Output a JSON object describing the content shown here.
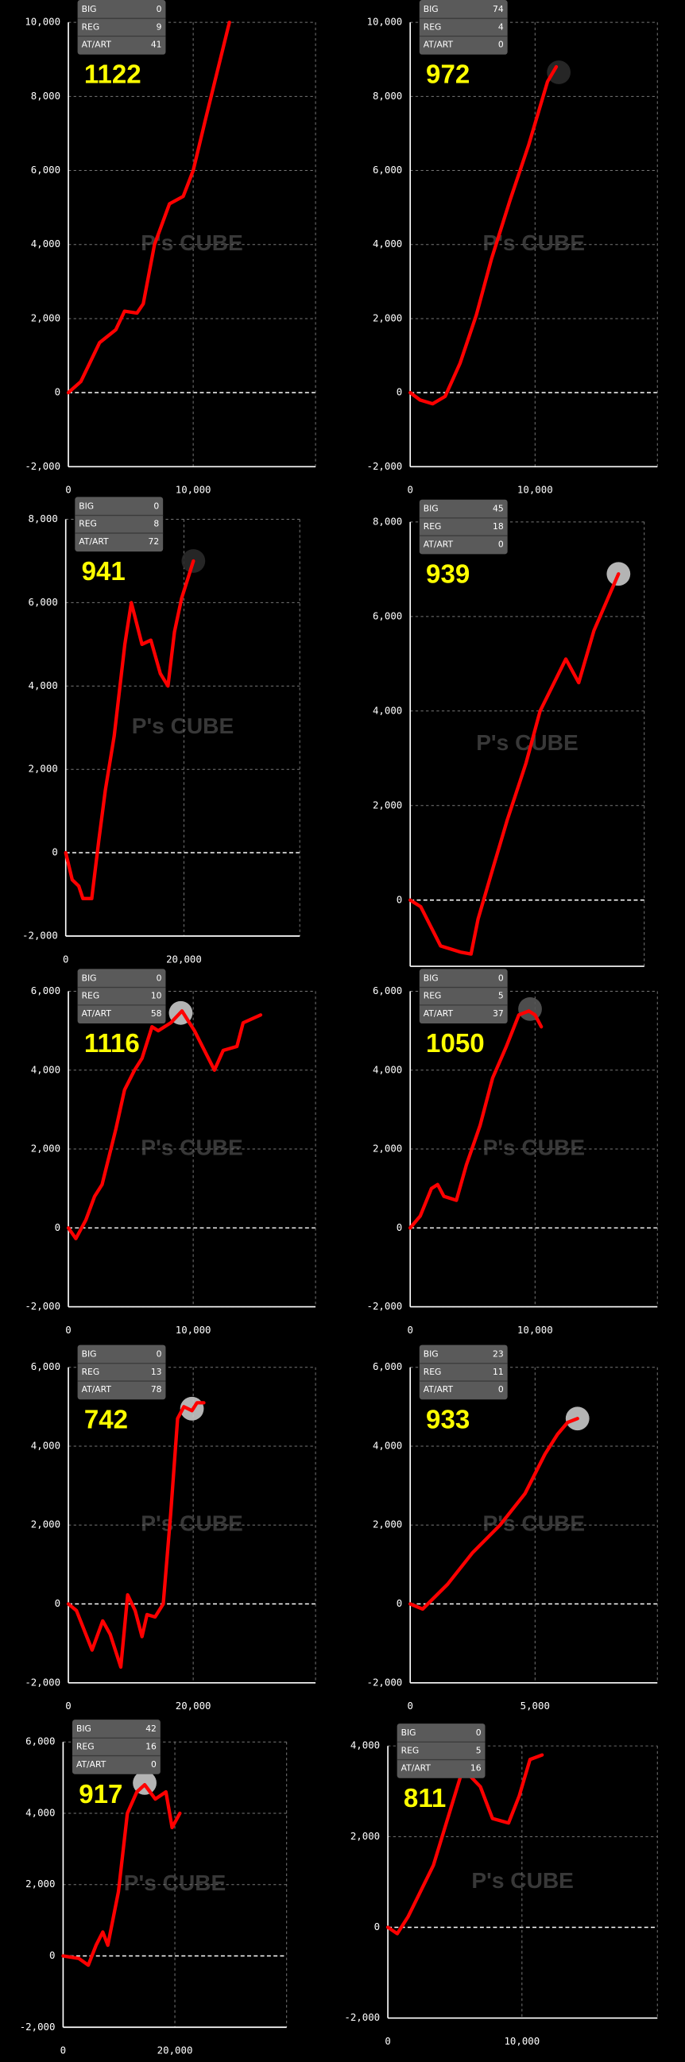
{
  "watermark": "P's CUBE",
  "chart_data": [
    {
      "type": "line",
      "color": "#ff0000",
      "stats": [
        {
          "label": "BIG",
          "value": 0
        },
        {
          "label": "REG",
          "value": 9
        },
        {
          "label": "AT/ART",
          "value": 41
        }
      ],
      "total": 1122,
      "x": [
        0,
        1000,
        2500,
        3800,
        4500,
        5500,
        6000,
        6900,
        8100,
        9200,
        10000,
        11000,
        12900
      ],
      "values": [
        0,
        300,
        1350,
        1700,
        2200,
        2150,
        2400,
        4000,
        5100,
        5300,
        6000,
        7400,
        10000
      ],
      "xlim": [
        0,
        19800
      ],
      "xticks": [
        0,
        {
          "value": 10000,
          "label": "10,000"
        }
      ],
      "ylim": [
        -2000,
        10000
      ],
      "yticks": [
        {
          "value": -2000,
          "label": "-2,000"
        },
        0,
        {
          "value": 2000,
          "label": "2,000"
        },
        {
          "value": 4000,
          "label": "4,000"
        },
        {
          "value": 6000,
          "label": "6,000"
        },
        {
          "value": 8000,
          "label": "8,000"
        },
        {
          "value": 10000,
          "label": "10,000"
        }
      ]
    },
    {
      "type": "line",
      "color": "#ff0000",
      "stats": [
        {
          "label": "BIG",
          "value": 74
        },
        {
          "label": "REG",
          "value": 4
        },
        {
          "label": "AT/ART",
          "value": 0
        }
      ],
      "total": 972,
      "x": [
        0,
        800,
        1800,
        2800,
        4000,
        5300,
        6500,
        8000,
        9500,
        11000,
        11700
      ],
      "values": [
        0,
        -200,
        -300,
        -100,
        800,
        2100,
        3600,
        5200,
        6700,
        8400,
        8800
      ],
      "marker": {
        "x": 11900,
        "y": 8650,
        "color": "#2a2a2a"
      },
      "xlim": [
        0,
        19800
      ],
      "xticks": [
        0,
        {
          "value": 10000,
          "label": "10,000"
        }
      ],
      "ylim": [
        -2000,
        10000
      ],
      "yticks": [
        {
          "value": -2000,
          "label": "-2,000"
        },
        0,
        {
          "value": 2000,
          "label": "2,000"
        },
        {
          "value": 4000,
          "label": "4,000"
        },
        {
          "value": 6000,
          "label": "6,000"
        },
        {
          "value": 8000,
          "label": "8,000"
        },
        {
          "value": 10000,
          "label": "10,000"
        }
      ]
    },
    {
      "type": "line",
      "color": "#ff0000",
      "stats": [
        {
          "label": "BIG",
          "value": 0
        },
        {
          "label": "REG",
          "value": 8
        },
        {
          "label": "AT/ART",
          "value": 72
        }
      ],
      "total": 941,
      "x": [
        0,
        1100,
        2200,
        2900,
        4400,
        5600,
        6700,
        8200,
        10000,
        11100,
        12900,
        14400,
        16000,
        17300,
        18400,
        19600,
        21600
      ],
      "values": [
        0,
        -650,
        -800,
        -1100,
        -1100,
        300,
        1500,
        2800,
        5000,
        6000,
        5000,
        5100,
        4300,
        4000,
        5300,
        6100,
        7000
      ],
      "marker": {
        "x": 21600,
        "y": 7000,
        "color": "#2a2a2a"
      },
      "xlim": [
        0,
        39600
      ],
      "xticks": [
        0,
        {
          "value": 20000,
          "label": "20,000"
        }
      ],
      "ylim": [
        -2000,
        8000
      ],
      "yticks": [
        {
          "value": -2000,
          "label": "-2,000"
        },
        0,
        {
          "value": 2000,
          "label": "2,000"
        },
        {
          "value": 4000,
          "label": "4,000"
        },
        {
          "value": 6000,
          "label": "6,000"
        },
        {
          "value": 8000,
          "label": "8,000"
        }
      ]
    },
    {
      "type": "line",
      "color": "#ff0000",
      "stats": [
        {
          "label": "BIG",
          "value": 45
        },
        {
          "label": "REG",
          "value": 18
        },
        {
          "label": "AT/ART",
          "value": 0
        }
      ],
      "total": 939,
      "x": [
        0,
        900,
        2600,
        4300,
        5200,
        5800,
        7100,
        8300,
        9900,
        11100,
        13300,
        14400,
        15700,
        17800
      ],
      "values": [
        0,
        -140,
        -970,
        -1100,
        -1140,
        -400,
        700,
        1700,
        2900,
        4000,
        5100,
        4600,
        5700,
        6900
      ],
      "marker": {
        "x": 17800,
        "y": 6900,
        "color": "#c8c8c8"
      },
      "xlim": [
        0,
        20000
      ],
      "xticks": [],
      "ylim": [
        -1400,
        8000
      ],
      "yticks": [
        0,
        {
          "value": 2000,
          "label": "2,000"
        },
        {
          "value": 4000,
          "label": "4,000"
        },
        {
          "value": 6000,
          "label": "6,000"
        },
        {
          "value": 8000,
          "label": "8,000"
        }
      ]
    },
    {
      "type": "line",
      "color": "#ff0000",
      "stats": [
        {
          "label": "BIG",
          "value": 0
        },
        {
          "label": "REG",
          "value": 10
        },
        {
          "label": "AT/ART",
          "value": 58
        }
      ],
      "total": 1116,
      "x": [
        0,
        600,
        1400,
        2100,
        2700,
        3800,
        4500,
        5300,
        5900,
        6700,
        7200,
        8200,
        9100,
        10100,
        11700,
        12400,
        13500,
        14000,
        15400
      ],
      "values": [
        0,
        -270,
        200,
        800,
        1100,
        2500,
        3500,
        4000,
        4300,
        5100,
        5000,
        5200,
        5500,
        5000,
        4000,
        4500,
        4600,
        5200,
        5400
      ],
      "marker": {
        "x": 9000,
        "y": 5450,
        "color": "#c8c8c8"
      },
      "xlim": [
        0,
        19800
      ],
      "xticks": [
        0,
        {
          "value": 10000,
          "label": "10,000"
        }
      ],
      "ylim": [
        -2000,
        6000
      ],
      "yticks": [
        {
          "value": -2000,
          "label": "-2,000"
        },
        0,
        {
          "value": 2000,
          "label": "2,000"
        },
        {
          "value": 4000,
          "label": "4,000"
        },
        {
          "value": 6000,
          "label": "6,000"
        }
      ]
    },
    {
      "type": "line",
      "color": "#ff0000",
      "stats": [
        {
          "label": "BIG",
          "value": 0
        },
        {
          "label": "REG",
          "value": 5
        },
        {
          "label": "AT/ART",
          "value": 37
        }
      ],
      "total": 1050,
      "x": [
        0,
        800,
        1700,
        2200,
        2700,
        3700,
        4500,
        5600,
        6600,
        7700,
        8700,
        9500,
        10000,
        10500
      ],
      "values": [
        0,
        300,
        1000,
        1100,
        800,
        700,
        1600,
        2600,
        3800,
        4600,
        5400,
        5500,
        5400,
        5100
      ],
      "marker": {
        "x": 9600,
        "y": 5550,
        "color": "#555555"
      },
      "xlim": [
        0,
        19800
      ],
      "xticks": [
        0,
        {
          "value": 10000,
          "label": "10,000"
        }
      ],
      "ylim": [
        -2000,
        6000
      ],
      "yticks": [
        {
          "value": -2000,
          "label": "-2,000"
        },
        0,
        {
          "value": 2000,
          "label": "2,000"
        },
        {
          "value": 4000,
          "label": "4,000"
        },
        {
          "value": 6000,
          "label": "6,000"
        }
      ]
    },
    {
      "type": "line",
      "color": "#ff0000",
      "stats": [
        {
          "label": "BIG",
          "value": 0
        },
        {
          "label": "REG",
          "value": 13
        },
        {
          "label": "AT/ART",
          "value": 78
        }
      ],
      "total": 742,
      "x": [
        0,
        1300,
        3800,
        5500,
        6700,
        8400,
        9500,
        10700,
        11800,
        12600,
        13900,
        15200,
        16400,
        17500,
        18500,
        19800,
        20600,
        21700
      ],
      "values": [
        0,
        -170,
        -1170,
        -430,
        -770,
        -1600,
        230,
        -170,
        -830,
        -270,
        -330,
        0,
        2300,
        4700,
        5000,
        4900,
        5100,
        5100
      ],
      "marker": {
        "x": 19800,
        "y": 4950,
        "color": "#c8c8c8"
      },
      "xlim": [
        0,
        39600
      ],
      "xticks": [
        0,
        {
          "value": 20000,
          "label": "20,000"
        }
      ],
      "ylim": [
        -2000,
        6000
      ],
      "yticks": [
        {
          "value": -2000,
          "label": "-2,000"
        },
        0,
        {
          "value": 2000,
          "label": "2,000"
        },
        {
          "value": 4000,
          "label": "4,000"
        },
        {
          "value": 6000,
          "label": "6,000"
        }
      ]
    },
    {
      "type": "line",
      "color": "#ff0000",
      "stats": [
        {
          "label": "BIG",
          "value": 23
        },
        {
          "label": "REG",
          "value": 11
        },
        {
          "label": "AT/ART",
          "value": 0
        }
      ],
      "total": 933,
      "x": [
        0,
        500,
        1500,
        2500,
        3600,
        4600,
        5400,
        5900,
        6300,
        6700
      ],
      "values": [
        0,
        -130,
        500,
        1300,
        2000,
        2800,
        3800,
        4300,
        4600,
        4700
      ],
      "marker": {
        "x": 6700,
        "y": 4700,
        "color": "#c8c8c8"
      },
      "xlim": [
        0,
        9900
      ],
      "xticks": [
        0,
        {
          "value": 5000,
          "label": "5,000"
        }
      ],
      "ylim": [
        -2000,
        6000
      ],
      "yticks": [
        {
          "value": -2000,
          "label": "-2,000"
        },
        0,
        {
          "value": 2000,
          "label": "2,000"
        },
        {
          "value": 4000,
          "label": "4,000"
        },
        {
          "value": 6000,
          "label": "6,000"
        }
      ]
    },
    {
      "type": "line",
      "color": "#ff0000",
      "stats": [
        {
          "label": "BIG",
          "value": 42
        },
        {
          "label": "REG",
          "value": 16
        },
        {
          "label": "AT/ART",
          "value": 0
        }
      ],
      "total": 917,
      "x": [
        0,
        2800,
        4500,
        5900,
        7100,
        8000,
        9900,
        11500,
        13200,
        14600,
        16500,
        18400,
        19500,
        20900
      ],
      "values": [
        0,
        -70,
        -260,
        300,
        670,
        300,
        1800,
        4000,
        4600,
        4800,
        4400,
        4600,
        3600,
        4000
      ],
      "marker": {
        "x": 14600,
        "y": 4850,
        "color": "#c8c8c8"
      },
      "xlim": [
        0,
        40000
      ],
      "xticks": [
        0,
        {
          "value": 20000,
          "label": "20,000"
        }
      ],
      "ylim": [
        -2000,
        6000
      ],
      "yticks": [
        {
          "value": -2000,
          "label": "-2,000"
        },
        0,
        {
          "value": 2000,
          "label": "2,000"
        },
        {
          "value": 4000,
          "label": "4,000"
        },
        {
          "value": 6000,
          "label": "6,000"
        }
      ]
    },
    {
      "type": "line",
      "color": "#ff0000",
      "stats": [
        {
          "label": "BIG",
          "value": 0
        },
        {
          "label": "REG",
          "value": 5
        },
        {
          "label": "AT/ART",
          "value": 16
        }
      ],
      "total": 811,
      "x": [
        0,
        700,
        1500,
        3400,
        5600,
        6900,
        7800,
        9000,
        9800,
        10600,
        11500
      ],
      "values": [
        0,
        -140,
        230,
        1370,
        3500,
        3100,
        2400,
        2300,
        2900,
        3700,
        3800
      ],
      "xlim": [
        0,
        20100
      ],
      "xticks": [
        0,
        {
          "value": 10000,
          "label": "10,000"
        }
      ],
      "ylim": [
        -2000,
        4000
      ],
      "yticks": [
        {
          "value": -2000,
          "label": "-2,000"
        },
        0,
        {
          "value": 2000,
          "label": "2,000"
        },
        {
          "value": 4000,
          "label": "4,000"
        }
      ]
    }
  ]
}
